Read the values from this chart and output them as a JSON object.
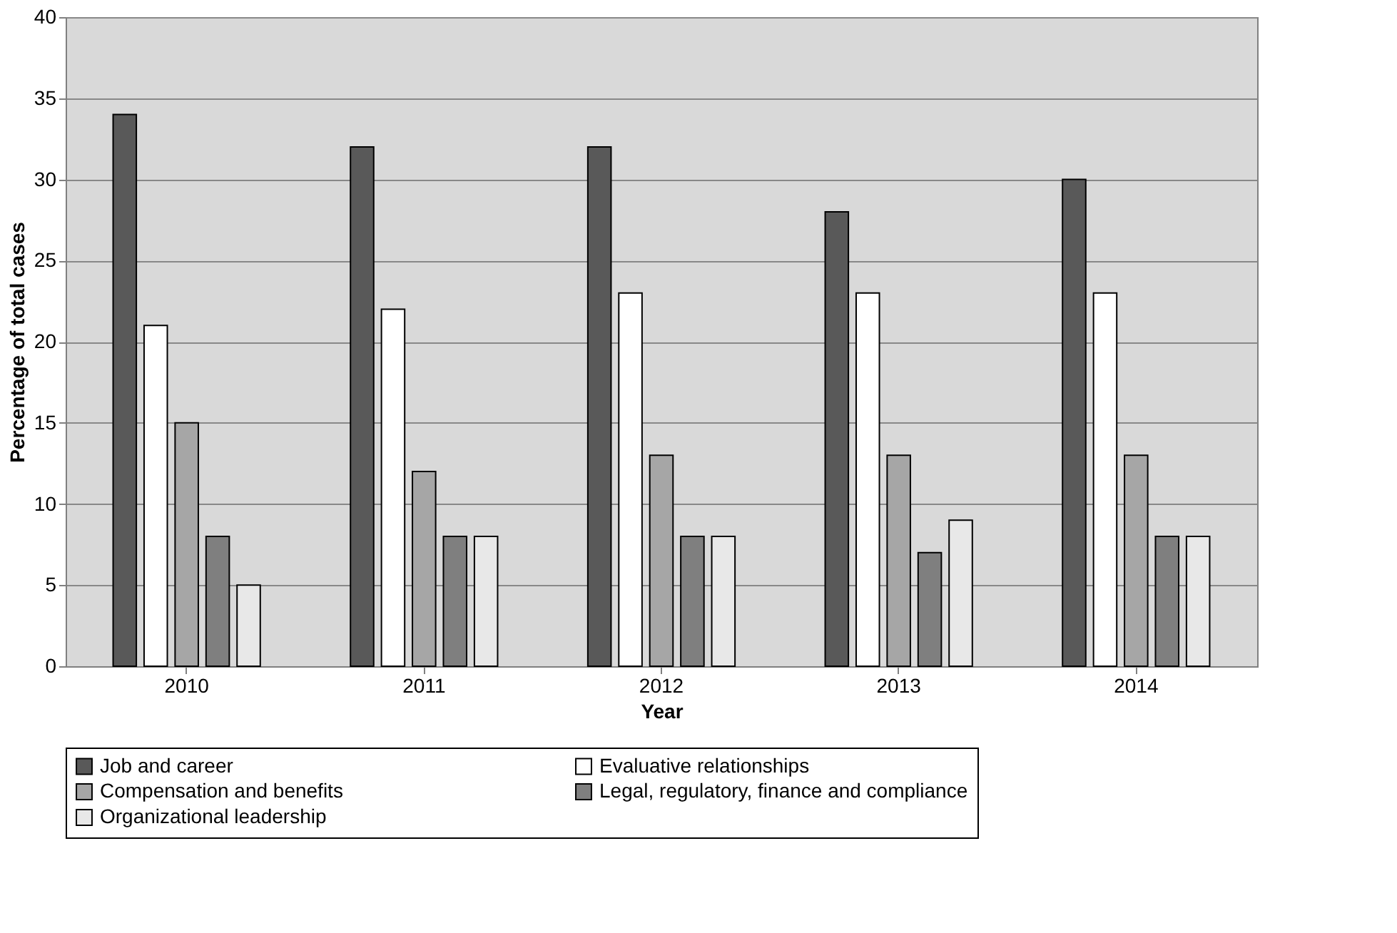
{
  "chart_data": {
    "type": "bar",
    "xlabel": "Year",
    "ylabel": "Percentage of total cases",
    "categories": [
      "2010",
      "2011",
      "2012",
      "2013",
      "2014"
    ],
    "series": [
      {
        "name": "Job and career",
        "color": "#595959",
        "values": [
          34,
          32,
          32,
          28,
          30
        ]
      },
      {
        "name": "Evaluative relationships",
        "color": "#ffffff",
        "values": [
          21,
          22,
          23,
          23,
          23
        ]
      },
      {
        "name": "Compensation and benefits",
        "color": "#a6a6a6",
        "values": [
          15,
          12,
          13,
          13,
          13
        ]
      },
      {
        "name": "Legal, regulatory, finance and compliance",
        "color": "#7f7f7f",
        "values": [
          8,
          8,
          8,
          7,
          8
        ]
      },
      {
        "name": "Organizational leadership",
        "color": "#e8e8e8",
        "values": [
          5,
          8,
          8,
          9,
          8
        ]
      }
    ],
    "ylim": [
      0,
      40
    ],
    "yticks": [
      0,
      5,
      10,
      15,
      20,
      25,
      30,
      35,
      40
    ],
    "grid": "y",
    "legend": "bottom"
  }
}
